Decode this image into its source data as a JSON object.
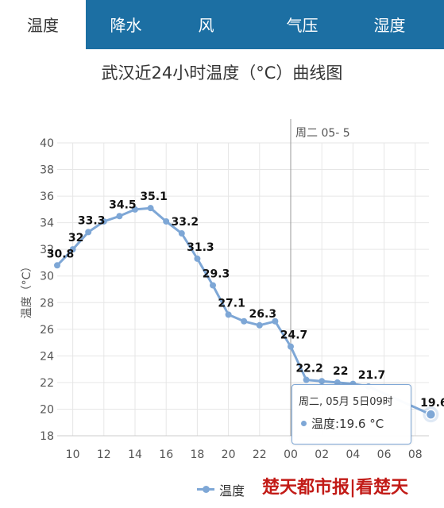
{
  "tabs": [
    {
      "label": "温度",
      "active": true
    },
    {
      "label": "降水",
      "active": false
    },
    {
      "label": "风",
      "active": false
    },
    {
      "label": "气压",
      "active": false
    },
    {
      "label": "湿度",
      "active": false
    }
  ],
  "colors": {
    "tabbar": "#1c6fa3",
    "series": "#7ea7d6",
    "watermark": "#c21b17"
  },
  "chart_data": {
    "type": "line",
    "title": "武汉近24小时温度（°C）曲线图",
    "xlabel": "",
    "ylabel": "温度（°C）",
    "ylim": [
      18,
      40
    ],
    "yticks": [
      18,
      20,
      22,
      24,
      26,
      28,
      30,
      32,
      34,
      36,
      38,
      40
    ],
    "xlim": [
      9.2,
      9.5
    ],
    "xticks": [
      "10",
      "12",
      "14",
      "16",
      "18",
      "20",
      "22",
      "00",
      "02",
      "04",
      "06",
      "08"
    ],
    "grid": true,
    "day_marker": "周二 05- 5",
    "series": [
      {
        "name": "温度",
        "points": [
          {
            "hour": 9,
            "value": 30.8
          },
          {
            "hour": 10,
            "value": 32
          },
          {
            "hour": 11,
            "value": 33.3
          },
          {
            "hour": 12,
            "value": 34.1
          },
          {
            "hour": 13,
            "value": 34.5
          },
          {
            "hour": 14,
            "value": 35
          },
          {
            "hour": 15,
            "value": 35.1
          },
          {
            "hour": 16,
            "value": 34.1
          },
          {
            "hour": 17,
            "value": 33.2
          },
          {
            "hour": 18,
            "value": 31.3
          },
          {
            "hour": 19,
            "value": 29.3
          },
          {
            "hour": 20,
            "value": 27.1
          },
          {
            "hour": 21,
            "value": 26.6
          },
          {
            "hour": 22,
            "value": 26.3
          },
          {
            "hour": 23,
            "value": 26.6
          },
          {
            "hour": 24,
            "value": 24.7
          },
          {
            "hour": 25,
            "value": 22.2
          },
          {
            "hour": 26,
            "value": 22.1
          },
          {
            "hour": 27,
            "value": 22
          },
          {
            "hour": 28,
            "value": 21.9
          },
          {
            "hour": 29,
            "value": 21.7
          },
          {
            "hour": 33,
            "value": 19.6
          }
        ],
        "labeled_values": [
          30.8,
          32,
          33.3,
          34.5,
          35.1,
          33.2,
          31.3,
          29.3,
          27.1,
          26.3,
          24.7,
          22.2,
          22,
          21.7,
          19.6
        ]
      }
    ],
    "tooltip": {
      "header": "周二, 05月 5日09时",
      "body": "温度:19.6 °C"
    },
    "legend": "温度"
  },
  "watermark": "楚天都市报|看楚天"
}
